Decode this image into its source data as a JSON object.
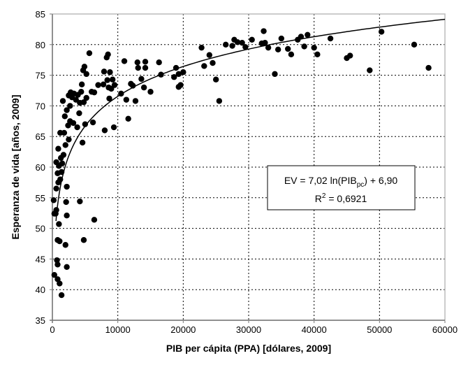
{
  "chart_data": {
    "type": "scatter",
    "xlabel": "PIB per cápita (PPA) [dólares, 2009]",
    "ylabel": "Esperanza de vida [años, 2009]",
    "xlim": [
      0,
      60000
    ],
    "ylim": [
      35,
      85
    ],
    "xticks": [
      0,
      10000,
      20000,
      30000,
      40000,
      50000,
      60000
    ],
    "yticks": [
      35,
      40,
      45,
      50,
      55,
      60,
      65,
      70,
      75,
      80,
      85
    ],
    "grid": true,
    "trendline": {
      "type": "logarithmic",
      "a": 7.02,
      "b": 6.9,
      "r2": 0.6921
    },
    "annotation": {
      "line1_prefix": "EV = 7,02 ln(PIB",
      "line1_sub": "pc",
      "line1_suffix": ") + 6,90",
      "line2_prefix": "R",
      "line2_sup": "2",
      "line2_suffix": " = 0,6921"
    },
    "points": [
      [
        200,
        54.6
      ],
      [
        300,
        52.4
      ],
      [
        500,
        52.4
      ],
      [
        600,
        53
      ],
      [
        1000,
        50.7
      ],
      [
        800,
        48.1
      ],
      [
        1100,
        47.9
      ],
      [
        2000,
        47.3
      ],
      [
        700,
        44.8
      ],
      [
        800,
        44.1
      ],
      [
        2200,
        43.7
      ],
      [
        300,
        42.4
      ],
      [
        800,
        41.7
      ],
      [
        1100,
        41.0
      ],
      [
        1400,
        39.1
      ],
      [
        4200,
        54.4
      ],
      [
        6400,
        51.4
      ],
      [
        4800,
        48.1
      ],
      [
        2200,
        56.8
      ],
      [
        2100,
        54.3
      ],
      [
        2200,
        52.1
      ],
      [
        600,
        56.5
      ],
      [
        900,
        57.5
      ],
      [
        1200,
        58.0
      ],
      [
        800,
        59.0
      ],
      [
        1400,
        59.2
      ],
      [
        1000,
        60.2
      ],
      [
        1500,
        60.6
      ],
      [
        600,
        60.8
      ],
      [
        1300,
        61.5
      ],
      [
        1700,
        62.0
      ],
      [
        900,
        63.0
      ],
      [
        2000,
        63.6
      ],
      [
        2500,
        64.5
      ],
      [
        1200,
        65.6
      ],
      [
        1800,
        65.6
      ],
      [
        4600,
        64.0
      ],
      [
        2400,
        66.8
      ],
      [
        3800,
        66.5
      ],
      [
        2700,
        67.5
      ],
      [
        3200,
        67.2
      ],
      [
        1900,
        68.3
      ],
      [
        2200,
        69.3
      ],
      [
        4100,
        68.8
      ],
      [
        5000,
        67.0
      ],
      [
        6200,
        67.3
      ],
      [
        8000,
        66.0
      ],
      [
        9400,
        66.5
      ],
      [
        2700,
        70.0
      ],
      [
        1600,
        70.8
      ],
      [
        3000,
        71.4
      ],
      [
        2500,
        71.7
      ],
      [
        3300,
        72.0
      ],
      [
        3600,
        71.0
      ],
      [
        4200,
        70.5
      ],
      [
        3900,
        71.8
      ],
      [
        4400,
        72.3
      ],
      [
        4800,
        70.6
      ],
      [
        5200,
        71.3
      ],
      [
        2800,
        72.2
      ],
      [
        4500,
        73.5
      ],
      [
        4700,
        75.8
      ],
      [
        4900,
        76.4
      ],
      [
        5200,
        75.2
      ],
      [
        5650,
        78.6
      ],
      [
        6000,
        72.3
      ],
      [
        6400,
        72.2
      ],
      [
        7000,
        73.4
      ],
      [
        7800,
        73.5
      ],
      [
        8300,
        77.9
      ],
      [
        8500,
        78.4
      ],
      [
        8600,
        73.0
      ],
      [
        8400,
        74.2
      ],
      [
        8800,
        75.5
      ],
      [
        9200,
        74.3
      ],
      [
        9000,
        72.8
      ],
      [
        7900,
        75.6
      ],
      [
        9500,
        73.4
      ],
      [
        8700,
        71.2
      ],
      [
        10500,
        72.0
      ],
      [
        11000,
        77.3
      ],
      [
        11300,
        71.0
      ],
      [
        11600,
        67.9
      ],
      [
        12000,
        73.6
      ],
      [
        12300,
        73.3
      ],
      [
        12700,
        70.8
      ],
      [
        13000,
        77.1
      ],
      [
        13100,
        76.2
      ],
      [
        13600,
        74.4
      ],
      [
        14000,
        73.0
      ],
      [
        14200,
        77.2
      ],
      [
        14200,
        76.2
      ],
      [
        15000,
        72.3
      ],
      [
        16300,
        77.1
      ],
      [
        16600,
        75.1
      ],
      [
        18600,
        74.7
      ],
      [
        18900,
        76.2
      ],
      [
        19300,
        75.2
      ],
      [
        19300,
        73.1
      ],
      [
        19600,
        73.4
      ],
      [
        20000,
        75.5
      ],
      [
        22800,
        79.5
      ],
      [
        23200,
        76.5
      ],
      [
        24000,
        78.3
      ],
      [
        24500,
        77.0
      ],
      [
        25000,
        74.3
      ],
      [
        25500,
        70.8
      ],
      [
        26500,
        80.0
      ],
      [
        27500,
        79.8
      ],
      [
        27800,
        80.8
      ],
      [
        28300,
        80.4
      ],
      [
        29000,
        80.3
      ],
      [
        29500,
        79.6
      ],
      [
        30500,
        80.8
      ],
      [
        32000,
        80.2
      ],
      [
        32300,
        82.2
      ],
      [
        32500,
        80.3
      ],
      [
        33000,
        79.5
      ],
      [
        34000,
        75.2
      ],
      [
        34500,
        79.2
      ],
      [
        35000,
        81.0
      ],
      [
        36000,
        79.3
      ],
      [
        36500,
        78.4
      ],
      [
        37500,
        80.8
      ],
      [
        38000,
        81.3
      ],
      [
        38500,
        79.7
      ],
      [
        39000,
        81.6
      ],
      [
        40000,
        79.5
      ],
      [
        40500,
        78.4
      ],
      [
        42500,
        81.0
      ],
      [
        45000,
        77.8
      ],
      [
        45500,
        78.2
      ],
      [
        48500,
        75.8
      ],
      [
        50300,
        82.1
      ],
      [
        55300,
        80.0
      ],
      [
        57500,
        76.2
      ]
    ]
  }
}
